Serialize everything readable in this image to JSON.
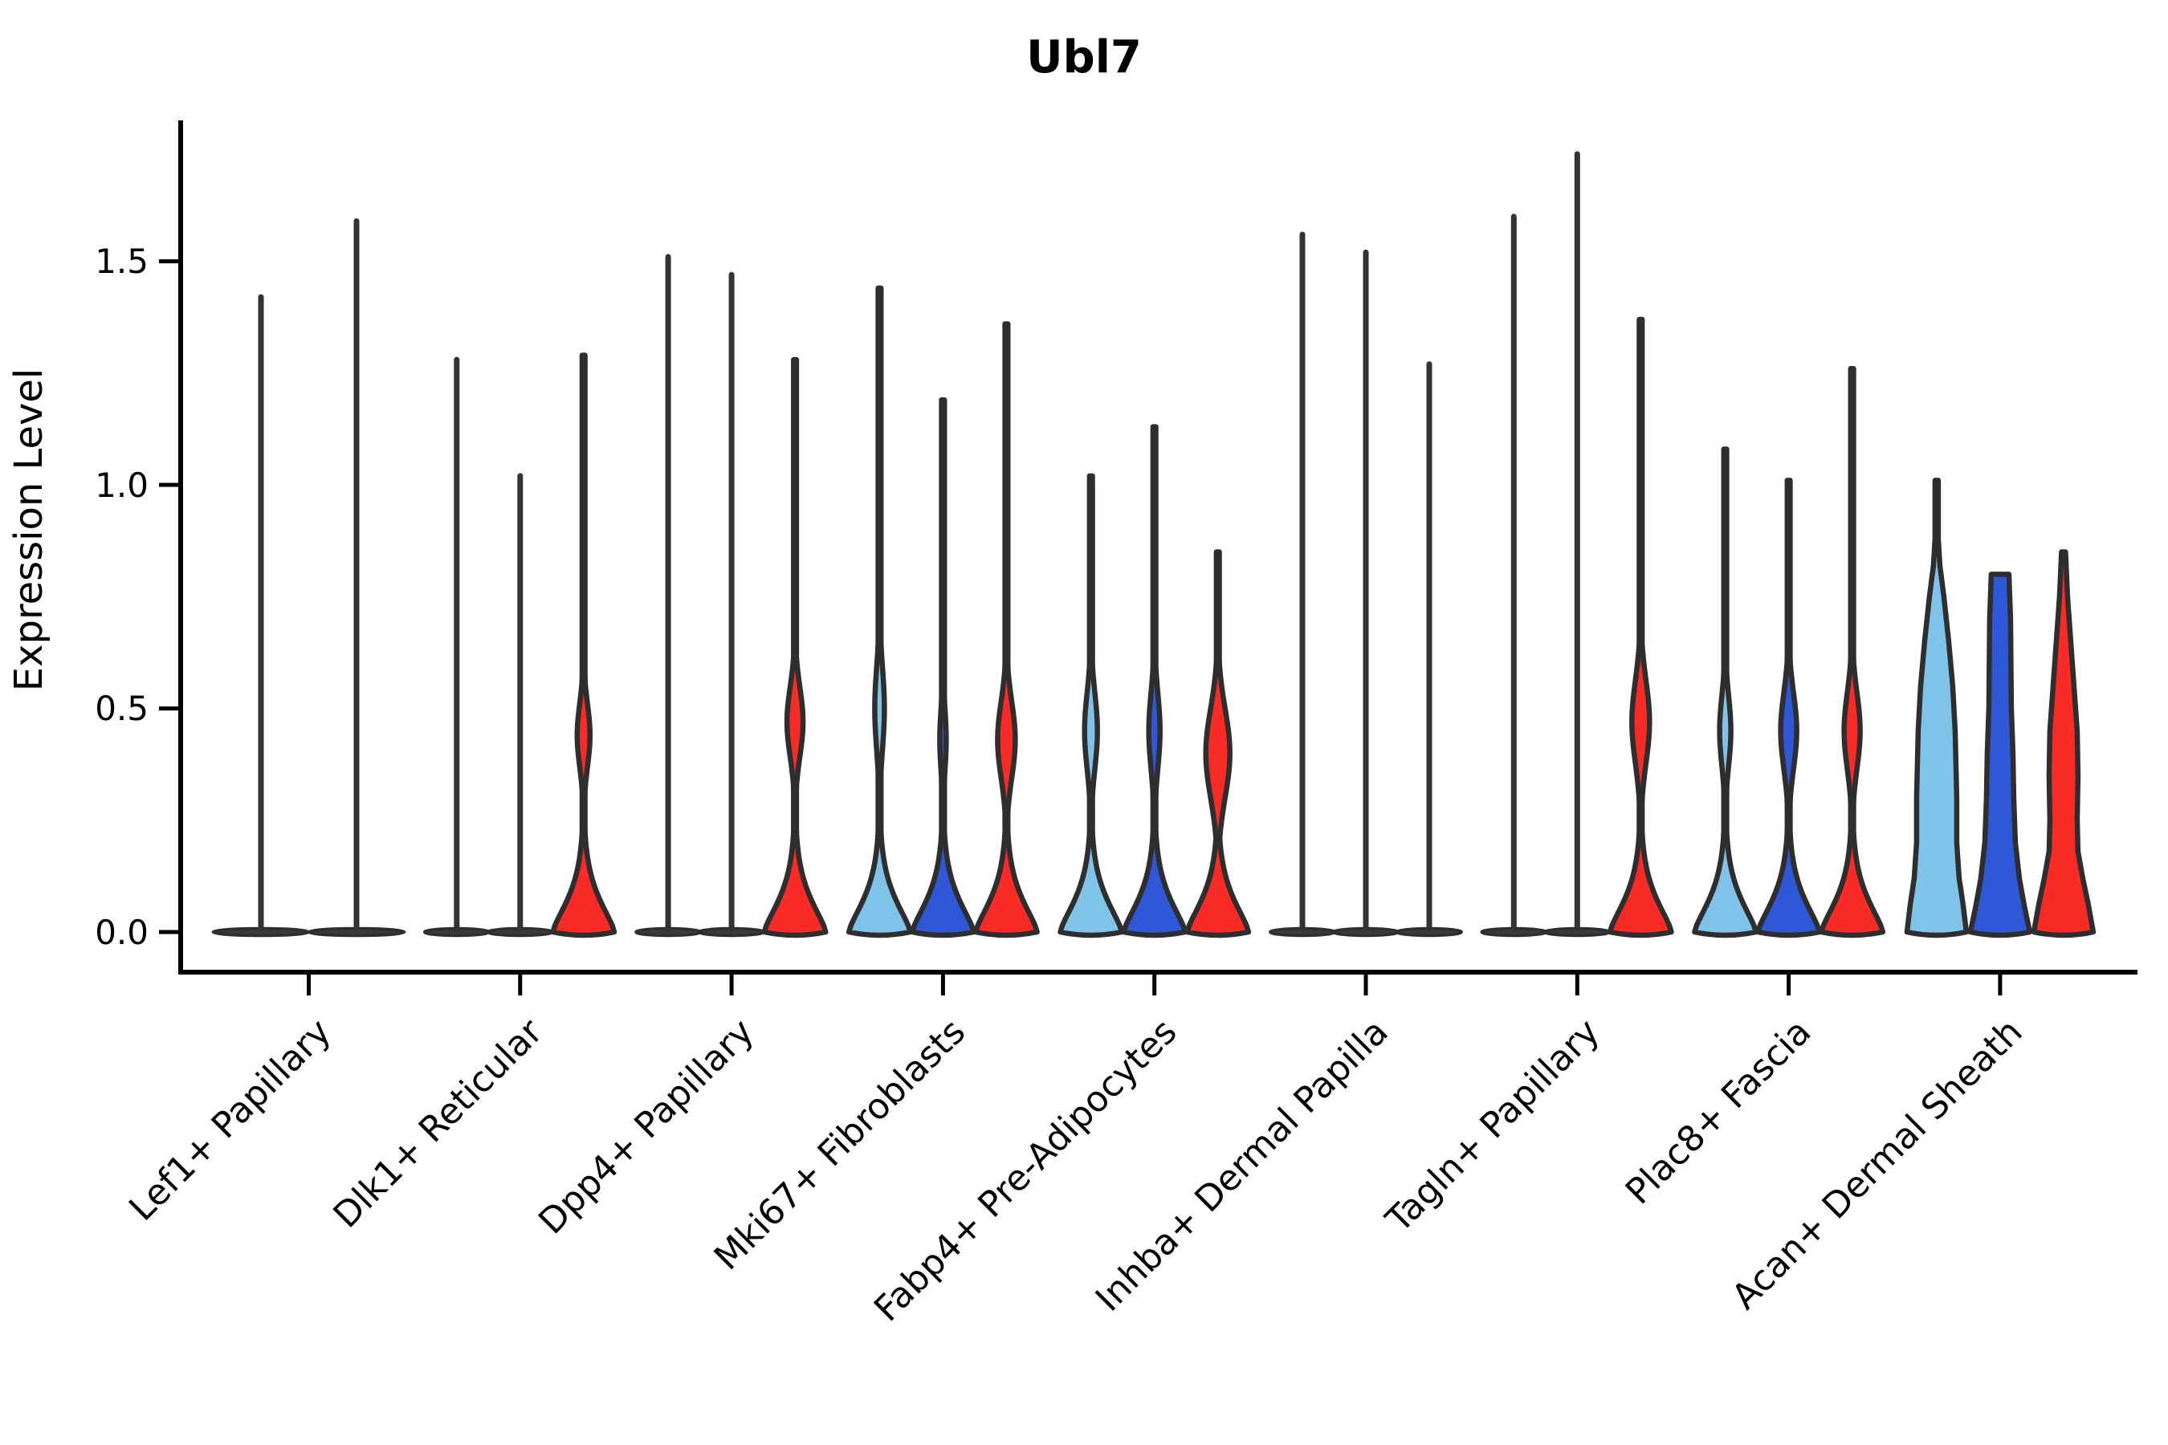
{
  "chart_data": {
    "type": "violin",
    "title": "Ubl7",
    "ylabel": "Expression Level",
    "xlabel": "",
    "ytick_labels": [
      "0.0",
      "0.5",
      "1.0",
      "1.5"
    ],
    "ytick_values": [
      0.0,
      0.5,
      1.0,
      1.5
    ],
    "ylim": [
      -0.09,
      1.81
    ],
    "grid": false,
    "legend": "none",
    "outline_color": "#2E2E2E",
    "axis_color": "#000000",
    "flat_fill": "#3a3a3a",
    "series_colors": {
      "sample1": "#7FC4E8",
      "sample2": "#2F58D8",
      "sample3": "#F92B26"
    },
    "categories": [
      "Lef1+ Papillary",
      "Dlk1+ Reticular",
      "Dpp4+ Papillary",
      "Mki67+ Fibroblasts",
      "Fabp4+ Pre-Adipocytes",
      "Inhba+ Dermal Papilla",
      "Tagln+ Papillary",
      "Plac8+ Fascia",
      "Acan+ Dermal Sheath"
    ],
    "groups": [
      {
        "label": "Lef1+ Papillary",
        "violins": [
          {
            "sample": 1,
            "flat": true,
            "max": 1.42
          },
          {
            "sample": 2,
            "flat": true,
            "max": 1.59
          }
        ]
      },
      {
        "label": "Dlk1+ Reticular",
        "violins": [
          {
            "sample": 1,
            "flat": true,
            "max": 1.28
          },
          {
            "sample": 2,
            "flat": true,
            "max": 1.02
          },
          {
            "sample": 3,
            "flat": false,
            "max": 1.29,
            "color": "#F92B26",
            "bulges": [
              {
                "c": 0.44,
                "h": 8,
                "s": 0.1
              }
            ]
          }
        ]
      },
      {
        "label": "Dpp4+ Papillary",
        "violins": [
          {
            "sample": 1,
            "flat": true,
            "max": 1.51
          },
          {
            "sample": 2,
            "flat": true,
            "max": 1.47
          },
          {
            "sample": 3,
            "flat": false,
            "max": 1.28,
            "color": "#F92B26",
            "bulges": [
              {
                "c": 0.47,
                "h": 10,
                "s": 0.11
              }
            ]
          }
        ]
      },
      {
        "label": "Mki67+ Fibroblasts",
        "violins": [
          {
            "sample": 1,
            "flat": false,
            "max": 1.44,
            "color": "#7FC4E8",
            "bulges": [
              {
                "c": 0.5,
                "h": 6,
                "s": 0.13
              }
            ]
          },
          {
            "sample": 2,
            "flat": false,
            "max": 1.19,
            "color": "#2F58D8",
            "bulges": [
              {
                "c": 0.43,
                "h": 4,
                "s": 0.1
              }
            ]
          },
          {
            "sample": 3,
            "flat": false,
            "max": 1.36,
            "color": "#F92B26",
            "bulges": [
              {
                "c": 0.43,
                "h": 11,
                "s": 0.12
              }
            ]
          }
        ]
      },
      {
        "label": "Fabp4+ Pre-Adipocytes",
        "violins": [
          {
            "sample": 1,
            "flat": false,
            "max": 1.02,
            "color": "#7FC4E8",
            "bulges": [
              {
                "c": 0.45,
                "h": 8,
                "s": 0.12
              }
            ]
          },
          {
            "sample": 2,
            "flat": false,
            "max": 1.13,
            "color": "#2F58D8",
            "bulges": [
              {
                "c": 0.45,
                "h": 7,
                "s": 0.12
              }
            ]
          },
          {
            "sample": 3,
            "flat": false,
            "max": 0.85,
            "color": "#F92B26",
            "bulges": [
              {
                "c": 0.4,
                "h": 15,
                "s": 0.14
              }
            ]
          }
        ]
      },
      {
        "label": "Inhba+ Dermal Papilla",
        "violins": [
          {
            "sample": 1,
            "flat": true,
            "max": 1.56
          },
          {
            "sample": 2,
            "flat": true,
            "max": 1.52
          },
          {
            "sample": 3,
            "flat": true,
            "max": 1.27
          }
        ]
      },
      {
        "label": "Tagln+ Papillary",
        "violins": [
          {
            "sample": 1,
            "flat": true,
            "max": 1.6
          },
          {
            "sample": 2,
            "flat": true,
            "max": 1.74
          },
          {
            "sample": 3,
            "flat": false,
            "max": 1.37,
            "color": "#F92B26",
            "bulges": [
              {
                "c": 0.47,
                "h": 11,
                "s": 0.13
              }
            ]
          }
        ]
      },
      {
        "label": "Plac8+ Fascia",
        "violins": [
          {
            "sample": 1,
            "flat": false,
            "max": 1.08,
            "color": "#7FC4E8",
            "bulges": [
              {
                "c": 0.45,
                "h": 7,
                "s": 0.11
              }
            ]
          },
          {
            "sample": 2,
            "flat": false,
            "max": 1.01,
            "color": "#2F58D8",
            "bulges": [
              {
                "c": 0.45,
                "h": 10,
                "s": 0.12
              }
            ]
          },
          {
            "sample": 3,
            "flat": false,
            "max": 1.26,
            "color": "#F92B26",
            "bulges": [
              {
                "c": 0.45,
                "h": 10,
                "s": 0.12
              }
            ]
          }
        ]
      },
      {
        "label": "Acan+ Dermal Sheath",
        "violins": [
          {
            "sample": 1,
            "flat": false,
            "max": 1.01,
            "color": "#7FC4E8",
            "profile": [
              [
                0,
                37
              ],
              [
                0.06,
                33
              ],
              [
                0.12,
                28
              ],
              [
                0.2,
                25
              ],
              [
                0.3,
                25
              ],
              [
                0.45,
                23
              ],
              [
                0.55,
                20
              ],
              [
                0.65,
                15
              ],
              [
                0.75,
                9
              ],
              [
                0.82,
                4
              ],
              [
                0.88,
                2
              ],
              [
                1.01,
                2
              ]
            ]
          },
          {
            "sample": 2,
            "flat": false,
            "max": 0.8,
            "color": "#2F58D8",
            "truncated": true,
            "profile": [
              [
                0,
                37
              ],
              [
                0.06,
                30
              ],
              [
                0.12,
                24
              ],
              [
                0.2,
                19
              ],
              [
                0.3,
                17
              ],
              [
                0.4,
                16
              ],
              [
                0.5,
                14
              ],
              [
                0.6,
                13.5
              ],
              [
                0.7,
                13
              ],
              [
                0.8,
                11
              ]
            ]
          },
          {
            "sample": 3,
            "flat": false,
            "max": 0.85,
            "color": "#F92B26",
            "profile": [
              [
                0,
                37
              ],
              [
                0.06,
                31
              ],
              [
                0.12,
                24
              ],
              [
                0.18,
                18
              ],
              [
                0.25,
                17
              ],
              [
                0.35,
                18
              ],
              [
                0.45,
                17
              ],
              [
                0.55,
                13
              ],
              [
                0.65,
                9
              ],
              [
                0.75,
                5
              ],
              [
                0.85,
                2.5
              ]
            ]
          }
        ]
      }
    ]
  }
}
